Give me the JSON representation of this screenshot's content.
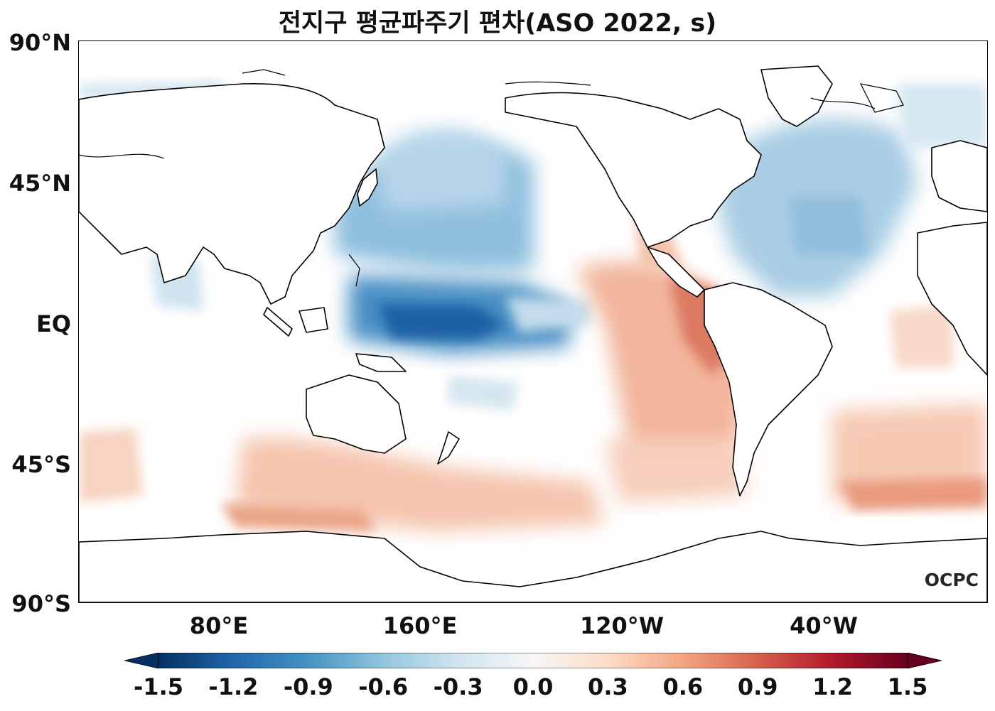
{
  "title": "전지구 평균파주기 편차(ASO 2022, s)",
  "lat_labels": [
    "90°N",
    "45°N",
    "EQ",
    "45°S",
    "90°S"
  ],
  "lon_labels": [
    "80°E",
    "160°E",
    "120°W",
    "40°W"
  ],
  "logo_text": "OCPC",
  "colorbar": {
    "colormap": "RdBu_r",
    "min": -1.5,
    "max": 1.5,
    "ticks": [
      "-1.5",
      "-1.2",
      "-0.9",
      "-0.6",
      "-0.3",
      "0.0",
      "0.3",
      "0.6",
      "0.9",
      "1.2",
      "1.5"
    ],
    "extend": "both",
    "colors": [
      "#053061",
      "#2166ac",
      "#4393c3",
      "#92c5de",
      "#d1e5f0",
      "#f7f7f7",
      "#fddbc7",
      "#f4a582",
      "#d6604d",
      "#b2182b",
      "#67001f"
    ]
  },
  "map": {
    "projection": "equirectangular",
    "central_longitude": "Pacific (≈180°)",
    "land_color": "#ffffff",
    "coastline_color": "#000000"
  }
}
